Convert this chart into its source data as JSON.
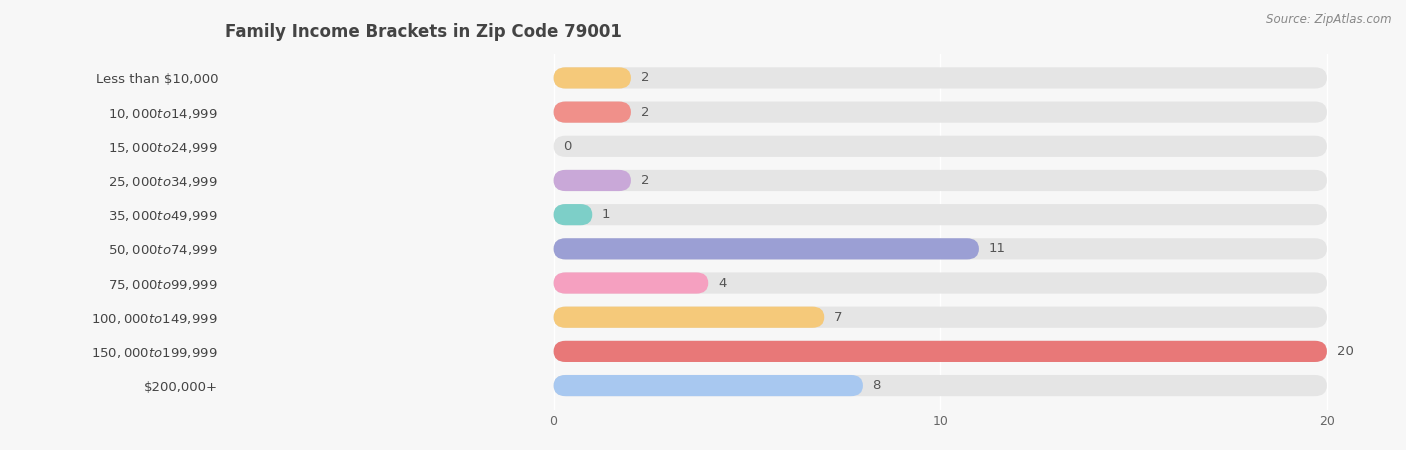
{
  "title": "Family Income Brackets in Zip Code 79001",
  "source": "Source: ZipAtlas.com",
  "categories": [
    "Less than $10,000",
    "$10,000 to $14,999",
    "$15,000 to $24,999",
    "$25,000 to $34,999",
    "$35,000 to $49,999",
    "$50,000 to $74,999",
    "$75,000 to $99,999",
    "$100,000 to $149,999",
    "$150,000 to $199,999",
    "$200,000+"
  ],
  "values": [
    2,
    2,
    0,
    2,
    1,
    11,
    4,
    7,
    20,
    8
  ],
  "bar_colors": [
    "#f5c97a",
    "#f0908a",
    "#a8bfe8",
    "#c9a8d8",
    "#7dcfc8",
    "#9b9fd4",
    "#f5a0c0",
    "#f5c97a",
    "#e87878",
    "#a8c8f0"
  ],
  "bg_color": "#f7f7f7",
  "bar_bg_color": "#e5e5e5",
  "xlim_max": 20,
  "xticks": [
    0,
    10,
    20
  ],
  "title_fontsize": 12,
  "label_fontsize": 9.5,
  "value_fontsize": 9.5,
  "source_fontsize": 8.5
}
